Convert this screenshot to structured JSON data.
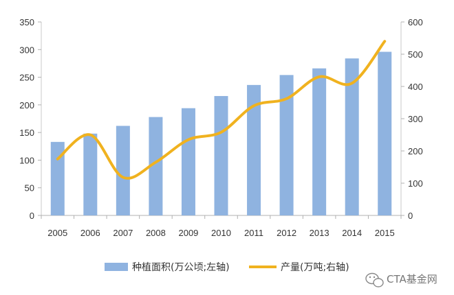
{
  "chart_data": {
    "type": "bar+line",
    "categories": [
      "2005",
      "2006",
      "2007",
      "2008",
      "2009",
      "2010",
      "2011",
      "2012",
      "2013",
      "2014",
      "2015"
    ],
    "series": [
      {
        "name": "种植面积(万公顷;左轴)",
        "kind": "bar",
        "axis": "left",
        "color": "#8fb3e0",
        "values": [
          133,
          148,
          162,
          178,
          194,
          216,
          236,
          254,
          266,
          284,
          296
        ]
      },
      {
        "name": "产量(万吨;右轴)",
        "kind": "line",
        "axis": "right",
        "color": "#f0b21f",
        "values": [
          175,
          250,
          118,
          165,
          235,
          258,
          340,
          362,
          430,
          410,
          540
        ]
      }
    ],
    "y_left": {
      "lim": [
        0,
        350
      ],
      "ticks": [
        "0",
        "50",
        "100",
        "150",
        "200",
        "250",
        "300",
        "350"
      ]
    },
    "y_right": {
      "lim": [
        0,
        600
      ],
      "ticks": [
        "0",
        "100",
        "200",
        "300",
        "400",
        "500",
        "600"
      ]
    },
    "grid": false,
    "legend": "bottom"
  },
  "watermark": {
    "text": "CTA基金网",
    "icon": "wechat-icon"
  }
}
